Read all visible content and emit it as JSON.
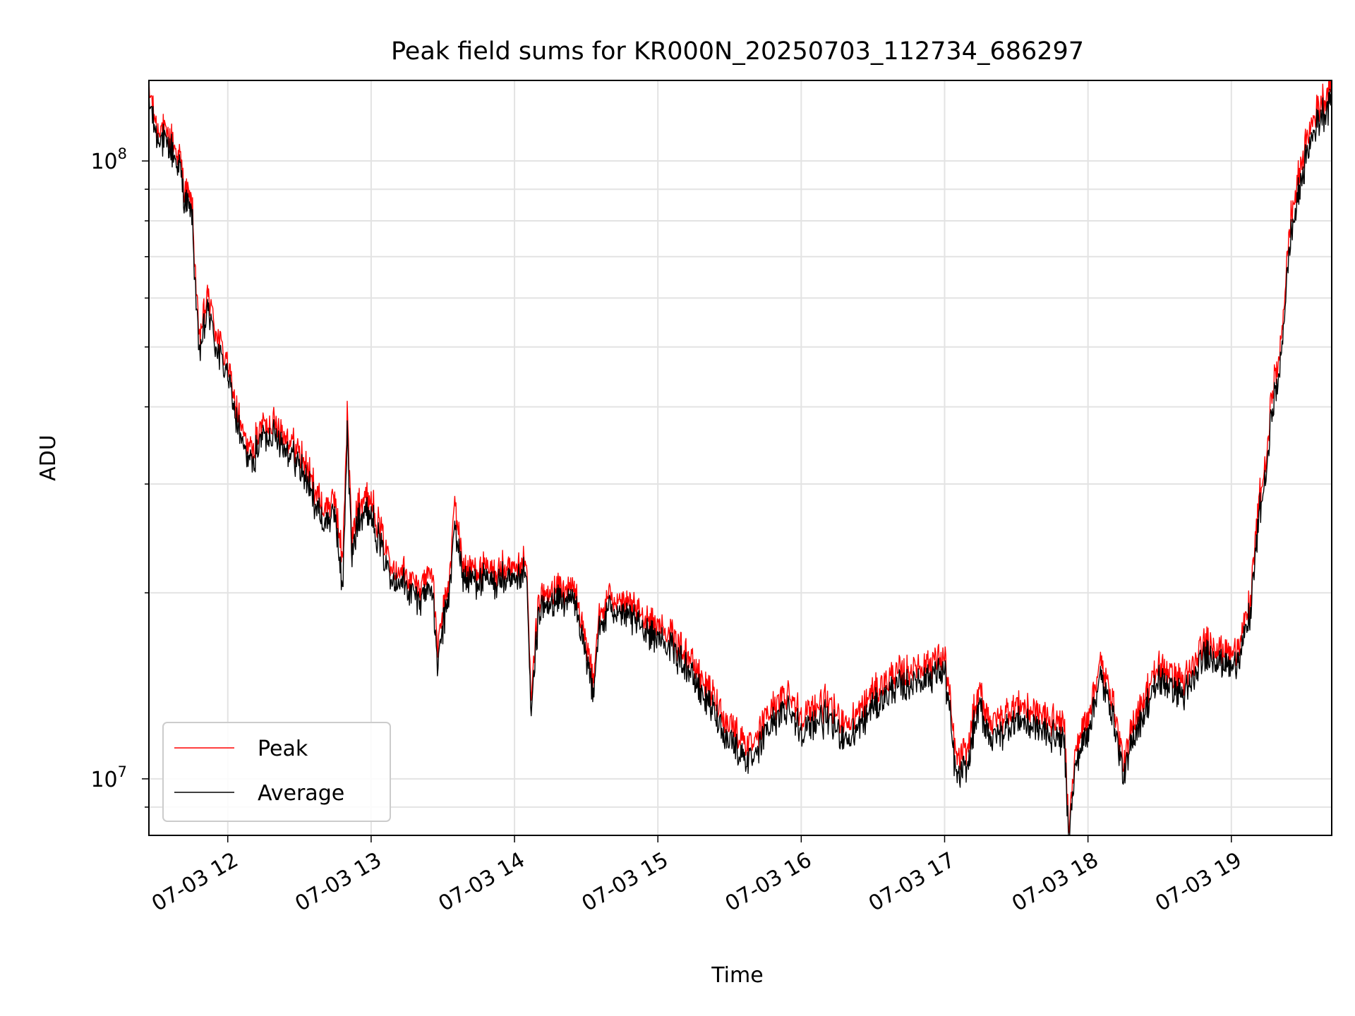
{
  "chart_data": {
    "type": "line",
    "title": "Peak field sums for KR000N_20250703_112734_686297",
    "xlabel": "Time",
    "ylabel": "ADU",
    "yscale": "log",
    "ylim": [
      8100000,
      135000000
    ],
    "xlim": [
      "07-03 11:27",
      "07-03 19:42"
    ],
    "grid": true,
    "legend_position": "lower-left",
    "x_ticks": [
      "07-03 12",
      "07-03 13",
      "07-03 14",
      "07-03 15",
      "07-03 16",
      "07-03 17",
      "07-03 18",
      "07-03 19"
    ],
    "y_ticks": [
      {
        "base": "10",
        "exp": "7"
      },
      {
        "base": "10",
        "exp": "8"
      }
    ],
    "x": [
      "11:27",
      "11:30",
      "11:35",
      "11:40",
      "11:42",
      "11:45",
      "11:48",
      "11:52",
      "11:55",
      "12:00",
      "12:03",
      "12:06",
      "12:10",
      "12:12",
      "12:15",
      "12:20",
      "12:25",
      "12:30",
      "12:35",
      "12:40",
      "12:45",
      "12:48",
      "12:50",
      "12:52",
      "12:55",
      "13:00",
      "13:05",
      "13:10",
      "13:15",
      "13:20",
      "13:25",
      "13:28",
      "13:30",
      "13:33",
      "13:35",
      "13:38",
      "13:40",
      "13:45",
      "13:50",
      "13:55",
      "14:00",
      "14:05",
      "14:07",
      "14:10",
      "14:15",
      "14:20",
      "14:25",
      "14:30",
      "14:33",
      "14:35",
      "14:40",
      "14:45",
      "14:50",
      "14:55",
      "15:00",
      "15:10",
      "15:20",
      "15:30",
      "15:35",
      "15:40",
      "15:45",
      "15:50",
      "15:55",
      "16:00",
      "16:10",
      "16:20",
      "16:30",
      "16:40",
      "16:50",
      "17:00",
      "17:05",
      "17:10",
      "17:12",
      "17:15",
      "17:20",
      "17:30",
      "17:40",
      "17:50",
      "17:52",
      "17:55",
      "18:00",
      "18:05",
      "18:10",
      "18:15",
      "18:20",
      "18:30",
      "18:40",
      "18:50",
      "19:00",
      "19:05",
      "19:08",
      "19:10",
      "19:12",
      "19:15",
      "19:17",
      "19:20",
      "19:22",
      "19:25",
      "19:30",
      "19:35",
      "19:40",
      "19:42"
    ],
    "series": [
      {
        "name": "Peak",
        "color": "#ff0000",
        "values": [
          128000000,
          112000000,
          108000000,
          100000000,
          88000000,
          84000000,
          50000000,
          60000000,
          52000000,
          46000000,
          40000000,
          36000000,
          33000000,
          35000000,
          37000000,
          37000000,
          35000000,
          33000000,
          30000000,
          27000000,
          28000000,
          22000000,
          38000000,
          24000000,
          28000000,
          28000000,
          24000000,
          21500000,
          21000000,
          20000000,
          22000000,
          16000000,
          18000000,
          21000000,
          28000000,
          22000000,
          21500000,
          21500000,
          21000000,
          21500000,
          21000000,
          22000000,
          13000000,
          19000000,
          19500000,
          20000000,
          20000000,
          16000000,
          14500000,
          17500000,
          19500000,
          19000000,
          18500000,
          18000000,
          17500000,
          16000000,
          14000000,
          12000000,
          11500000,
          11000000,
          12500000,
          13000000,
          13500000,
          12500000,
          13000000,
          12000000,
          13500000,
          14500000,
          15000000,
          15500000,
          10500000,
          11000000,
          12500000,
          13500000,
          12000000,
          13000000,
          12500000,
          12000000,
          8300000,
          11000000,
          12500000,
          15000000,
          13500000,
          10300000,
          12500000,
          15000000,
          14000000,
          16500000,
          15500000,
          17000000,
          19000000,
          24000000,
          28000000,
          33000000,
          42000000,
          46000000,
          58000000,
          80000000,
          100000000,
          118000000,
          126000000,
          130000000
        ]
      },
      {
        "name": "Average",
        "color": "#000000",
        "values": [
          125000000,
          110000000,
          106000000,
          98000000,
          86000000,
          82000000,
          48000000,
          58000000,
          50000000,
          45000000,
          39000000,
          35000000,
          32000000,
          34000000,
          36000000,
          36000000,
          34000000,
          32000000,
          29000000,
          26000000,
          27000000,
          20000000,
          36000000,
          23000000,
          27000000,
          27000000,
          23000000,
          21000000,
          20500000,
          19500000,
          21000000,
          15200000,
          17500000,
          20500000,
          26000000,
          21500000,
          21000000,
          21000000,
          20500000,
          21000000,
          20500000,
          21500000,
          12500000,
          18500000,
          19000000,
          19500000,
          19500000,
          15500000,
          14000000,
          17000000,
          19000000,
          18500000,
          18000000,
          17500000,
          17000000,
          15500000,
          13500000,
          11500000,
          11000000,
          10600000,
          12000000,
          12500000,
          13000000,
          12000000,
          12500000,
          11500000,
          13000000,
          14000000,
          14500000,
          15000000,
          10000000,
          10500000,
          12000000,
          13000000,
          11500000,
          12500000,
          12000000,
          11500000,
          8150000,
          10600000,
          12000000,
          14500000,
          13000000,
          10000000,
          12000000,
          14500000,
          13500000,
          16000000,
          15000000,
          16500000,
          18500000,
          23000000,
          27000000,
          32000000,
          40000000,
          44000000,
          56000000,
          76000000,
          96000000,
          114000000,
          122000000,
          126000000
        ]
      }
    ]
  }
}
